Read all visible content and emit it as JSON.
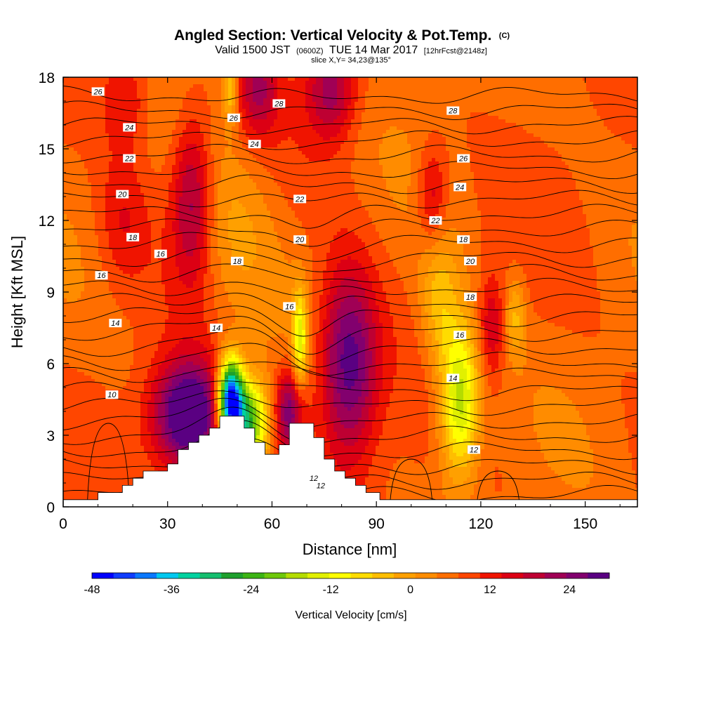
{
  "chart_data": {
    "type": "heatmap",
    "title": "Angled Section: Vertical Velocity & Pot.Temp.",
    "title_suffix": "(C)",
    "subtitle": {
      "valid": "Valid 1500 JST",
      "zulu": "(0600Z)",
      "date": "TUE 14 Mar 2017",
      "forecast": "[12hrFcst@2148z]"
    },
    "slice_note": "slice X,Y= 34,23@135°",
    "xlabel": "Distance [nm]",
    "ylabel": "Height [Kft MSL]",
    "xlim": [
      0,
      165
    ],
    "ylim": [
      0,
      18
    ],
    "x_ticks": [
      "0",
      "30",
      "60",
      "90",
      "120",
      "150"
    ],
    "y_ticks": [
      "0",
      "3",
      "6",
      "9",
      "12",
      "15",
      "18"
    ],
    "colorbar": {
      "label": "Vertical Velocity [cm/s]",
      "ticks": [
        "-48",
        "-36",
        "-24",
        "-12",
        "0",
        "12",
        "24"
      ],
      "range": [
        -48,
        30
      ],
      "step": 3,
      "colors": [
        "#0000ff",
        "#0f3cff",
        "#0a78ff",
        "#00c8f0",
        "#00d2a0",
        "#14be6e",
        "#1ea02d",
        "#3cb414",
        "#6ec80a",
        "#b4dc00",
        "#e1f000",
        "#ffff00",
        "#ffdc00",
        "#ffbe00",
        "#ffa000",
        "#ff8c00",
        "#ff6e00",
        "#ff4600",
        "#f01400",
        "#dc0014",
        "#be0032",
        "#a00055",
        "#82006e",
        "#5a0082"
      ]
    },
    "overlay": {
      "name": "Potential Temperature (C)",
      "contour_labels": [
        "10",
        "12",
        "12",
        "12",
        "14",
        "14",
        "14",
        "16",
        "16",
        "16",
        "16",
        "18",
        "18",
        "18",
        "18",
        "20",
        "20",
        "20",
        "22",
        "22",
        "22",
        "24",
        "24",
        "24",
        "26",
        "26",
        "26",
        "28",
        "28"
      ]
    },
    "terrain_profile": [
      [
        0,
        0.3
      ],
      [
        10,
        0.3
      ],
      [
        10,
        0.6
      ],
      [
        17,
        0.6
      ],
      [
        17,
        0.9
      ],
      [
        20,
        0.9
      ],
      [
        20,
        1.2
      ],
      [
        23,
        1.2
      ],
      [
        23,
        1.5
      ],
      [
        30,
        1.5
      ],
      [
        30,
        1.8
      ],
      [
        33,
        1.8
      ],
      [
        33,
        2.4
      ],
      [
        36,
        2.4
      ],
      [
        36,
        2.7
      ],
      [
        39,
        2.7
      ],
      [
        39,
        3.0
      ],
      [
        42,
        3.0
      ],
      [
        42,
        3.3
      ],
      [
        45,
        3.3
      ],
      [
        45,
        3.8
      ],
      [
        52,
        3.8
      ],
      [
        52,
        3.3
      ],
      [
        55,
        3.3
      ],
      [
        55,
        2.7
      ],
      [
        58,
        2.7
      ],
      [
        58,
        2.2
      ],
      [
        62,
        2.2
      ],
      [
        62,
        2.6
      ],
      [
        65,
        2.6
      ],
      [
        65,
        3.5
      ],
      [
        72,
        3.5
      ],
      [
        72,
        2.9
      ],
      [
        75,
        2.9
      ],
      [
        75,
        2.0
      ],
      [
        78,
        2.0
      ],
      [
        78,
        1.5
      ],
      [
        81,
        1.5
      ],
      [
        81,
        1.2
      ],
      [
        84,
        1.2
      ],
      [
        84,
        0.9
      ],
      [
        87,
        0.9
      ],
      [
        87,
        0.6
      ],
      [
        91,
        0.6
      ],
      [
        91,
        0.3
      ],
      [
        165,
        0.3
      ]
    ],
    "features": [
      {
        "x": 82,
        "y": 6.0,
        "w": 22,
        "level": 28,
        "sx": 6,
        "sy": 2.8
      },
      {
        "x": 36,
        "y": 3.8,
        "w": 28,
        "level": 24,
        "sx": 7,
        "sy": 1.6
      },
      {
        "x": 65,
        "y": 4.0,
        "w": 18,
        "level": 22,
        "sx": 3,
        "sy": 1.3
      },
      {
        "x": 37,
        "y": 13.0,
        "w": 14,
        "level": 20,
        "sx": 4,
        "sy": 2.5
      },
      {
        "x": 56,
        "y": 17.5,
        "w": 12,
        "level": 20,
        "sx": 4,
        "sy": 1.5
      },
      {
        "x": 77,
        "y": 17.5,
        "w": 14,
        "level": 20,
        "sx": 5,
        "sy": 1.5
      },
      {
        "x": 106,
        "y": 13.0,
        "w": 10,
        "level": 16,
        "sx": 3,
        "sy": 1.5
      },
      {
        "x": 123,
        "y": 7.5,
        "w": 10,
        "level": 16,
        "sx": 2.5,
        "sy": 1.5
      },
      {
        "x": 18,
        "y": 17.2,
        "w": 8,
        "level": 14,
        "sx": 5,
        "sy": 1.5
      },
      {
        "x": 17,
        "y": 12.0,
        "w": 6,
        "level": 12,
        "sx": 5,
        "sy": 2
      },
      {
        "x": 48,
        "y": 4.5,
        "w": -48,
        "level": -48,
        "sx": 2.5,
        "sy": 1.2
      },
      {
        "x": 53,
        "y": 3.5,
        "w": -30,
        "level": -30,
        "sx": 4,
        "sy": 1.3
      },
      {
        "x": 114,
        "y": 4.5,
        "w": -24,
        "level": -24,
        "sx": 4,
        "sy": 2.2
      },
      {
        "x": 108,
        "y": 8.5,
        "w": -10,
        "level": -10,
        "sx": 4,
        "sy": 2
      },
      {
        "x": 68,
        "y": 7.0,
        "w": -18,
        "level": -18,
        "sx": 1.5,
        "sy": 1.5
      },
      {
        "x": 48,
        "y": 17.5,
        "w": -12,
        "level": -12,
        "sx": 1.5,
        "sy": 1
      },
      {
        "x": 50,
        "y": 11.5,
        "w": -6,
        "level": -6,
        "sx": 8,
        "sy": 3
      },
      {
        "x": 130,
        "y": 8.0,
        "w": -9,
        "level": -9,
        "sx": 2,
        "sy": 1.2
      }
    ]
  },
  "colors": {
    "background_field": "#ffbe00",
    "terrain": "#ffffff",
    "contour": "#000000"
  }
}
